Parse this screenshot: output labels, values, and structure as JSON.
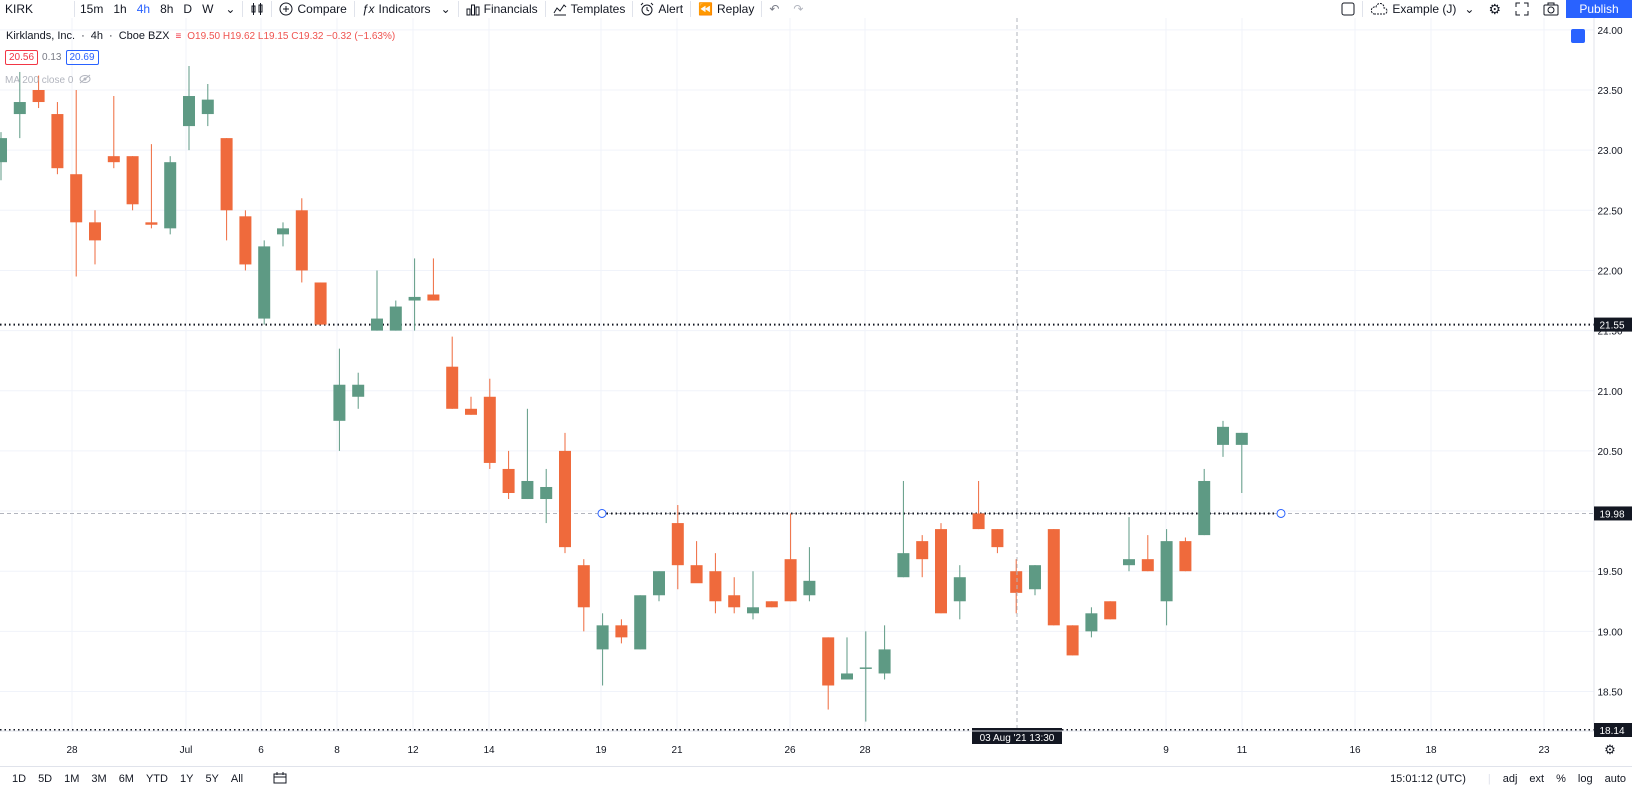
{
  "toolbar": {
    "symbol": "KIRK",
    "timeframes": [
      "15m",
      "1h",
      "4h",
      "8h",
      "D",
      "W"
    ],
    "active_timeframe": "4h",
    "compare_label": "Compare",
    "indicators_label": "Indicators",
    "financials_label": "Financials",
    "templates_label": "Templates",
    "alert_label": "Alert",
    "replay_label": "Replay",
    "layout_name": "Example (J)",
    "publish_label": "Publish"
  },
  "legend": {
    "title": "Kirklands, Inc.",
    "interval": "4h",
    "exchange": "Cboe BZX",
    "ohlc": "O19.50 H19.62 L19.15 C19.32 −0.32 (−1.63%)",
    "sell_price": "20.56",
    "spread": "0.13",
    "buy_price": "20.69",
    "ma_label": "MA 200 close 0"
  },
  "chart_data": {
    "type": "candlestick",
    "y_axis_labels": [
      "24.00",
      "23.50",
      "23.00",
      "22.50",
      "22.00",
      "21.50",
      "21.00",
      "20.50",
      "20.00",
      "19.50",
      "19.00",
      "18.50"
    ],
    "ylim": [
      18.14,
      24.04
    ],
    "x_axis_labels": [
      "28",
      "Jul",
      "6",
      "8",
      "12",
      "14",
      "19",
      "21",
      "26",
      "28",
      "9",
      "11",
      "16",
      "18",
      "23"
    ],
    "crosshair_date": "03 Aug '21  13:30",
    "price_tags": [
      {
        "value": "21.55",
        "style": "dotted"
      },
      {
        "value": "19.98",
        "style": "dotted"
      },
      {
        "value": "18.14",
        "style": "dotted"
      }
    ],
    "up_color": "#5e9a84",
    "down_color": "#ef6a3c",
    "candles": [
      {
        "o": 22.9,
        "h": 23.15,
        "l": 22.75,
        "c": 23.1
      },
      {
        "o": 23.3,
        "h": 23.65,
        "l": 23.1,
        "c": 23.4
      },
      {
        "o": 23.5,
        "h": 23.62,
        "l": 23.35,
        "c": 23.4
      },
      {
        "o": 23.3,
        "h": 23.4,
        "l": 22.8,
        "c": 22.85
      },
      {
        "o": 22.8,
        "h": 23.5,
        "l": 21.95,
        "c": 22.4
      },
      {
        "o": 22.4,
        "h": 22.5,
        "l": 22.05,
        "c": 22.25
      },
      {
        "o": 22.95,
        "h": 23.45,
        "l": 22.85,
        "c": 22.9
      },
      {
        "o": 22.95,
        "h": 22.95,
        "l": 22.5,
        "c": 22.55
      },
      {
        "o": 22.4,
        "h": 23.05,
        "l": 22.35,
        "c": 22.38
      },
      {
        "o": 22.35,
        "h": 22.95,
        "l": 22.3,
        "c": 22.9
      },
      {
        "o": 23.2,
        "h": 23.7,
        "l": 23.0,
        "c": 23.45
      },
      {
        "o": 23.3,
        "h": 23.55,
        "l": 23.2,
        "c": 23.42
      },
      {
        "o": 23.1,
        "h": 23.1,
        "l": 22.25,
        "c": 22.5
      },
      {
        "o": 22.45,
        "h": 22.5,
        "l": 22.0,
        "c": 22.05
      },
      {
        "o": 21.6,
        "h": 22.25,
        "l": 21.55,
        "c": 22.2
      },
      {
        "o": 22.3,
        "h": 22.4,
        "l": 22.2,
        "c": 22.35
      },
      {
        "o": 22.5,
        "h": 22.6,
        "l": 21.9,
        "c": 22.0
      },
      {
        "o": 21.9,
        "h": 21.9,
        "l": 21.55,
        "c": 21.55
      },
      {
        "o": 20.75,
        "h": 21.35,
        "l": 20.5,
        "c": 21.05
      },
      {
        "o": 20.95,
        "h": 21.15,
        "l": 20.85,
        "c": 21.05
      },
      {
        "o": 21.5,
        "h": 22.0,
        "l": 21.5,
        "c": 21.6
      },
      {
        "o": 21.5,
        "h": 21.75,
        "l": 21.5,
        "c": 21.7
      },
      {
        "o": 21.75,
        "h": 22.1,
        "l": 21.5,
        "c": 21.78
      },
      {
        "o": 21.8,
        "h": 22.1,
        "l": 21.75,
        "c": 21.75
      },
      {
        "o": 21.2,
        "h": 21.45,
        "l": 20.85,
        "c": 20.85
      },
      {
        "o": 20.85,
        "h": 20.95,
        "l": 20.8,
        "c": 20.8
      },
      {
        "o": 20.95,
        "h": 21.1,
        "l": 20.35,
        "c": 20.4
      },
      {
        "o": 20.35,
        "h": 20.5,
        "l": 20.1,
        "c": 20.15
      },
      {
        "o": 20.1,
        "h": 20.85,
        "l": 20.1,
        "c": 20.25
      },
      {
        "o": 20.1,
        "h": 20.35,
        "l": 19.9,
        "c": 20.2
      },
      {
        "o": 20.5,
        "h": 20.65,
        "l": 19.65,
        "c": 19.7
      },
      {
        "o": 19.55,
        "h": 19.6,
        "l": 19.0,
        "c": 19.2
      },
      {
        "o": 18.85,
        "h": 19.15,
        "l": 18.55,
        "c": 19.05
      },
      {
        "o": 19.05,
        "h": 19.1,
        "l": 18.9,
        "c": 18.95
      },
      {
        "o": 18.85,
        "h": 19.3,
        "l": 18.85,
        "c": 19.3
      },
      {
        "o": 19.3,
        "h": 19.5,
        "l": 19.25,
        "c": 19.5
      },
      {
        "o": 19.9,
        "h": 20.05,
        "l": 19.35,
        "c": 19.55
      },
      {
        "o": 19.55,
        "h": 19.75,
        "l": 19.45,
        "c": 19.4
      },
      {
        "o": 19.5,
        "h": 19.65,
        "l": 19.15,
        "c": 19.25
      },
      {
        "o": 19.3,
        "h": 19.45,
        "l": 19.15,
        "c": 19.2
      },
      {
        "o": 19.15,
        "h": 19.5,
        "l": 19.1,
        "c": 19.2
      },
      {
        "o": 19.25,
        "h": 19.25,
        "l": 19.2,
        "c": 19.2
      },
      {
        "o": 19.6,
        "h": 19.98,
        "l": 19.25,
        "c": 19.25
      },
      {
        "o": 19.3,
        "h": 19.7,
        "l": 19.25,
        "c": 19.42
      },
      {
        "o": 18.95,
        "h": 18.95,
        "l": 18.35,
        "c": 18.55
      },
      {
        "o": 18.6,
        "h": 18.95,
        "l": 18.6,
        "c": 18.65
      },
      {
        "o": 18.7,
        "h": 19.0,
        "l": 18.25,
        "c": 18.7
      },
      {
        "o": 18.65,
        "h": 19.05,
        "l": 18.6,
        "c": 18.85
      },
      {
        "o": 19.45,
        "h": 20.25,
        "l": 19.45,
        "c": 19.65
      },
      {
        "o": 19.75,
        "h": 19.8,
        "l": 19.45,
        "c": 19.6
      },
      {
        "o": 19.85,
        "h": 19.9,
        "l": 19.15,
        "c": 19.15
      },
      {
        "o": 19.25,
        "h": 19.55,
        "l": 19.1,
        "c": 19.45
      },
      {
        "o": 19.98,
        "h": 20.25,
        "l": 19.85,
        "c": 19.85
      },
      {
        "o": 19.85,
        "h": 19.85,
        "l": 19.65,
        "c": 19.7
      },
      {
        "o": 19.5,
        "h": 19.6,
        "l": 19.15,
        "c": 19.32
      },
      {
        "o": 19.35,
        "h": 19.55,
        "l": 19.3,
        "c": 19.55
      },
      {
        "o": 19.85,
        "h": 19.85,
        "l": 19.05,
        "c": 19.05
      },
      {
        "o": 19.05,
        "h": 19.05,
        "l": 18.8,
        "c": 18.8
      },
      {
        "o": 19.0,
        "h": 19.2,
        "l": 18.95,
        "c": 19.15
      },
      {
        "o": 19.25,
        "h": 19.25,
        "l": 19.1,
        "c": 19.1
      },
      {
        "o": 19.55,
        "h": 19.95,
        "l": 19.5,
        "c": 19.6
      },
      {
        "o": 19.6,
        "h": 19.8,
        "l": 19.5,
        "c": 19.5
      },
      {
        "o": 19.25,
        "h": 19.85,
        "l": 19.05,
        "c": 19.75
      },
      {
        "o": 19.75,
        "h": 19.78,
        "l": 19.5,
        "c": 19.5
      },
      {
        "o": 19.8,
        "h": 20.35,
        "l": 19.8,
        "c": 20.25
      },
      {
        "o": 20.55,
        "h": 20.75,
        "l": 20.45,
        "c": 20.7
      },
      {
        "o": 20.55,
        "h": 20.65,
        "l": 20.15,
        "c": 20.65
      }
    ]
  },
  "bottom": {
    "ranges": [
      "1D",
      "5D",
      "1M",
      "3M",
      "6M",
      "YTD",
      "1Y",
      "5Y",
      "All"
    ],
    "time": "15:01:12 (UTC)",
    "adj": "adj",
    "ext": "ext",
    "pct": "%",
    "log": "log",
    "auto": "auto"
  }
}
